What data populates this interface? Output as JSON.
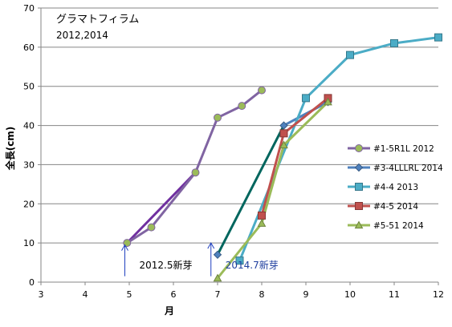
{
  "chart_data": {
    "type": "line",
    "title": "グラマトフィラム",
    "subtitle": "2012,2014",
    "xlabel": "月",
    "ylabel": "全長(cm)",
    "xlim": [
      3,
      12
    ],
    "ylim": [
      0,
      70
    ],
    "xticks": [
      3,
      4,
      5,
      6,
      7,
      8,
      9,
      10,
      11,
      12
    ],
    "yticks": [
      0,
      10,
      20,
      30,
      40,
      50,
      60,
      70
    ],
    "grid": true,
    "legend_position": "right",
    "series": [
      {
        "name": "#1-5R1L 2012",
        "color": "#8064a2",
        "marker": "circle",
        "markerFill": "#9bbb59",
        "x": [
          4.95,
          5.5,
          6.5,
          7.0,
          7.55,
          8.0
        ],
        "y": [
          10,
          14,
          28,
          42,
          45,
          49
        ]
      },
      {
        "name": "#3-4LLLRL 2014",
        "color": "#4f81bd",
        "marker": "diamond",
        "markerFill": "#4f81bd",
        "x": [
          8.5,
          9.5
        ],
        "y": [
          40,
          46
        ]
      },
      {
        "name": "#4-4 2013",
        "color": "#4bacc6",
        "marker": "square",
        "markerFill": "#4bacc6",
        "x": [
          7.5,
          9.0,
          10.0,
          11.0,
          12.0
        ],
        "y": [
          5.5,
          47,
          58,
          61,
          62.5
        ]
      },
      {
        "name": "#4-5 2014",
        "color": "#c0504d",
        "marker": "square",
        "markerFill": "#c0504d",
        "x": [
          8.0,
          8.5,
          9.5
        ],
        "y": [
          17,
          38,
          47
        ]
      },
      {
        "name": "#5-51 2014",
        "color": "#9bbb59",
        "marker": "triangle",
        "markerFill": "#9bbb59",
        "x": [
          7.0,
          8.0,
          8.5,
          9.5
        ],
        "y": [
          1,
          15,
          35,
          46
        ]
      }
    ],
    "connectors": [
      {
        "color": "#7030a0",
        "x": [
          4.95,
          6.5
        ],
        "y": [
          10,
          28
        ]
      },
      {
        "color": "#00665e",
        "x": [
          7.0,
          8.5
        ],
        "y": [
          7,
          40
        ]
      }
    ],
    "extra_points": [
      {
        "color": "#4f81bd",
        "marker": "diamond",
        "x": 7.0,
        "y": 7
      }
    ],
    "annotations": [
      {
        "text": "2012.5新芽",
        "color": "#000000",
        "anchor_x": 4.9,
        "anchor_y": 9.5
      },
      {
        "text": "2014.7新芽",
        "color": "#1f3f9f",
        "anchor_x": 6.85,
        "anchor_y": 10
      }
    ]
  }
}
